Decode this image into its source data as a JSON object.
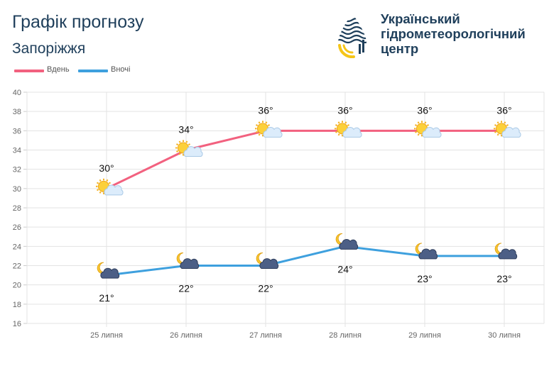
{
  "title": "Графік прогнозу",
  "subtitle": "Запоріжжя",
  "organization": {
    "line1": "Український",
    "line2": "гідрометеорологічний",
    "line3": "центр"
  },
  "colors": {
    "day": "#f2617f",
    "night": "#3ea0de",
    "title": "#1f3f5b",
    "grid": "#e3e3e3"
  },
  "chart_data": {
    "type": "line",
    "categories": [
      "25 липня",
      "26 липня",
      "27 липня",
      "28 липня",
      "29 липня",
      "30 липня"
    ],
    "series": [
      {
        "name": "Вдень",
        "values": [
          30,
          34,
          36,
          36,
          36,
          36
        ],
        "labels": [
          "30°",
          "34°",
          "36°",
          "36°",
          "36°",
          "36°"
        ],
        "icon": "sun-cloud-icon"
      },
      {
        "name": "Вночі",
        "values": [
          21,
          22,
          22,
          24,
          23,
          23
        ],
        "labels": [
          "21°",
          "22°",
          "22°",
          "24°",
          "23°",
          "23°"
        ],
        "icon": "moon-cloud-icon"
      }
    ],
    "ylim": [
      16,
      40
    ],
    "yticks": [
      16,
      18,
      20,
      22,
      24,
      26,
      28,
      30,
      32,
      34,
      36,
      38,
      40
    ],
    "grid": true,
    "legend_position": "top-left"
  }
}
